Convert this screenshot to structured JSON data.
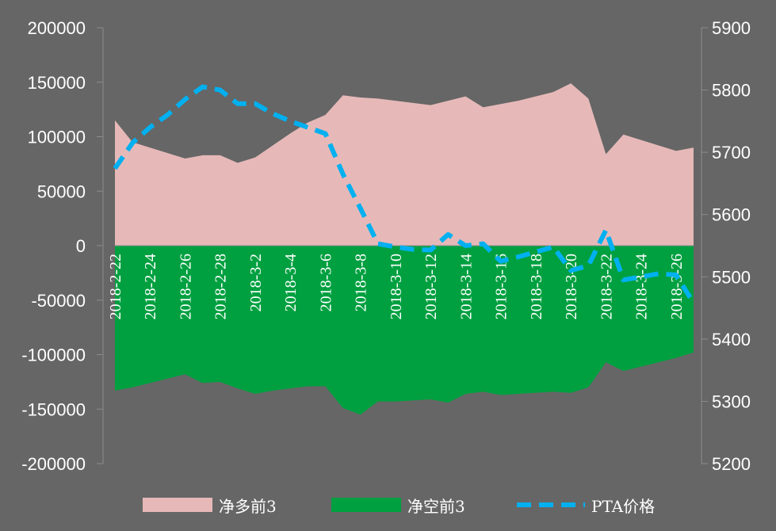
{
  "chart_data": {
    "type": "area",
    "dates": [
      "2018-2-22",
      "2018-2-23",
      "2018-2-24",
      "2018-2-25",
      "2018-2-26",
      "2018-2-27",
      "2018-2-28",
      "2018-3-1",
      "2018-3-2",
      "2018-3-3",
      "2018-3-4",
      "2018-3-5",
      "2018-3-6",
      "2018-3-7",
      "2018-3-8",
      "2018-3-9",
      "2018-3-10",
      "2018-3-11",
      "2018-3-12",
      "2018-3-13",
      "2018-3-14",
      "2018-3-15",
      "2018-3-16",
      "2018-3-17",
      "2018-3-18",
      "2018-3-19",
      "2018-3-20",
      "2018-3-21",
      "2018-3-22",
      "2018-3-23",
      "2018-3-24",
      "2018-3-25",
      "2018-3-26",
      "2018-3-27"
    ],
    "tick_labels": [
      "2018-2-22",
      "2018-2-24",
      "2018-2-26",
      "2018-2-28",
      "2018-3-2",
      "2018-3-4",
      "2018-3-6",
      "2018-3-8",
      "2018-3-10",
      "2018-3-12",
      "2018-3-14",
      "2018-3-16",
      "2018-3-18",
      "2018-3-20",
      "2018-3-22",
      "2018-3-24",
      "2018-3-26"
    ],
    "left_axis": {
      "ylim": [
        -200000,
        200000
      ],
      "ticks": [
        "200000",
        "150000",
        "100000",
        "50000",
        "0",
        "-50000",
        "-100000",
        "-150000",
        "-200000"
      ]
    },
    "right_axis": {
      "ylim": [
        5200,
        5900
      ],
      "ticks": [
        "5900",
        "5800",
        "5700",
        "5600",
        "5500",
        "5400",
        "5300",
        "5200"
      ]
    },
    "series": [
      {
        "name": "净多前3",
        "kind": "area",
        "axis": "left",
        "color": "#e6b9b8",
        "values": [
          115000,
          95000,
          90000,
          85000,
          80000,
          83000,
          83000,
          76000,
          81000,
          92000,
          103000,
          113000,
          120000,
          138000,
          136000,
          135000,
          133000,
          131000,
          129000,
          133000,
          137000,
          127000,
          130000,
          133000,
          137000,
          141000,
          149000,
          135000,
          84000,
          102000,
          97000,
          92000,
          87000,
          90000
        ]
      },
      {
        "name": "净空前3",
        "kind": "area",
        "axis": "left",
        "color": "#00a040",
        "values": [
          -133000,
          -130000,
          -126000,
          -122000,
          -118000,
          -126000,
          -125000,
          -131000,
          -136000,
          -133000,
          -131000,
          -129000,
          -129000,
          -149000,
          -155000,
          -143000,
          -143000,
          -142000,
          -141000,
          -144000,
          -136000,
          -134000,
          -137000,
          -136000,
          -135000,
          -134000,
          -135000,
          -130000,
          -107000,
          -115000,
          -111000,
          -107000,
          -103000,
          -98000
        ]
      },
      {
        "name": "PTA价格",
        "kind": "line",
        "axis": "right",
        "color": "#00b0f0",
        "dash": true,
        "values": [
          5674,
          5715,
          5740,
          5760,
          5785,
          5805,
          5800,
          5778,
          5778,
          5762,
          5750,
          5740,
          5730,
          5665,
          5610,
          5553,
          5548,
          5544,
          5543,
          5568,
          5550,
          5553,
          5525,
          5532,
          5540,
          5548,
          5510,
          5518,
          5575,
          5495,
          5500,
          5505,
          5503,
          5458
        ]
      }
    ],
    "legend": "bottom"
  }
}
